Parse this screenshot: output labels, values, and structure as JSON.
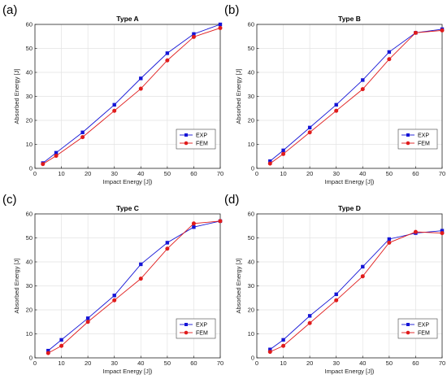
{
  "colors": {
    "exp": "#1515d6",
    "fem": "#e01b1b",
    "grid": "#e3e3e3",
    "axis": "#262626"
  },
  "chart_data": [
    {
      "type": "line",
      "panel_label": "(a)",
      "title": "Type A",
      "xlabel": "Impact Energy [J])",
      "ylabel": "Absorbed Energy [J]",
      "xlim": [
        0,
        70
      ],
      "ylim": [
        0,
        60
      ],
      "xticks": [
        0,
        10,
        20,
        30,
        40,
        50,
        60,
        70
      ],
      "yticks": [
        0,
        10,
        20,
        30,
        40,
        50,
        60
      ],
      "grid": true,
      "legend": "lower-right",
      "series": [
        {
          "name": "EXP",
          "x": [
            3,
            8,
            18,
            30,
            40,
            50,
            60,
            70
          ],
          "y": [
            2.2,
            6.5,
            15,
            26.5,
            37.5,
            48,
            56,
            60
          ]
        },
        {
          "name": "FEM",
          "x": [
            3,
            8,
            18,
            30,
            40,
            50,
            60,
            70
          ],
          "y": [
            1.8,
            5.2,
            13,
            24,
            33.2,
            45,
            54.8,
            58.5
          ]
        }
      ]
    },
    {
      "type": "line",
      "panel_label": "(b)",
      "title": "Type B",
      "xlabel": "Impact Energy [J])",
      "ylabel": "Absorbed Energy [J]",
      "xlim": [
        0,
        70
      ],
      "ylim": [
        0,
        60
      ],
      "xticks": [
        0,
        10,
        20,
        30,
        40,
        50,
        60,
        70
      ],
      "yticks": [
        0,
        10,
        20,
        30,
        40,
        50,
        60
      ],
      "grid": true,
      "legend": "lower-right",
      "series": [
        {
          "name": "EXP",
          "x": [
            5,
            10,
            20,
            30,
            40,
            50,
            60,
            70
          ],
          "y": [
            3,
            7.5,
            17,
            26.5,
            36.8,
            48.5,
            56.5,
            58
          ]
        },
        {
          "name": "FEM",
          "x": [
            5,
            10,
            20,
            30,
            40,
            50,
            60,
            70
          ],
          "y": [
            2,
            6,
            15,
            24,
            33,
            45.5,
            56.5,
            57.5
          ]
        }
      ]
    },
    {
      "type": "line",
      "panel_label": "(c)",
      "title": "Type C",
      "xlabel": "Impact Energy [J])",
      "ylabel": "Absorbed Energy [J]",
      "xlim": [
        0,
        70
      ],
      "ylim": [
        0,
        60
      ],
      "xticks": [
        0,
        10,
        20,
        30,
        40,
        50,
        60,
        70
      ],
      "yticks": [
        0,
        10,
        20,
        30,
        40,
        50,
        60
      ],
      "grid": true,
      "legend": "lower-right",
      "series": [
        {
          "name": "EXP",
          "x": [
            5,
            10,
            20,
            30,
            40,
            50,
            60,
            70
          ],
          "y": [
            3,
            7.5,
            16.5,
            26,
            39,
            48,
            54.5,
            57
          ]
        },
        {
          "name": "FEM",
          "x": [
            5,
            10,
            20,
            30,
            40,
            50,
            60,
            70
          ],
          "y": [
            2,
            5,
            15,
            24,
            33,
            45.5,
            56,
            57
          ]
        }
      ]
    },
    {
      "type": "line",
      "panel_label": "(d)",
      "title": "Type D",
      "xlabel": "Impact Energy [J])",
      "ylabel": "Absorbed Energy [J]",
      "xlim": [
        0,
        70
      ],
      "ylim": [
        0,
        60
      ],
      "xticks": [
        0,
        10,
        20,
        30,
        40,
        50,
        60,
        70
      ],
      "yticks": [
        0,
        10,
        20,
        30,
        40,
        50,
        60
      ],
      "grid": true,
      "legend": "lower-right",
      "series": [
        {
          "name": "EXP",
          "x": [
            5,
            10,
            20,
            30,
            40,
            50,
            60,
            70
          ],
          "y": [
            3.5,
            7.5,
            17.5,
            26.5,
            38,
            49.5,
            52,
            53
          ]
        },
        {
          "name": "FEM",
          "x": [
            5,
            10,
            20,
            30,
            40,
            50,
            60,
            70
          ],
          "y": [
            2.5,
            5,
            14.5,
            24,
            34,
            48,
            52.5,
            52
          ]
        }
      ]
    }
  ]
}
